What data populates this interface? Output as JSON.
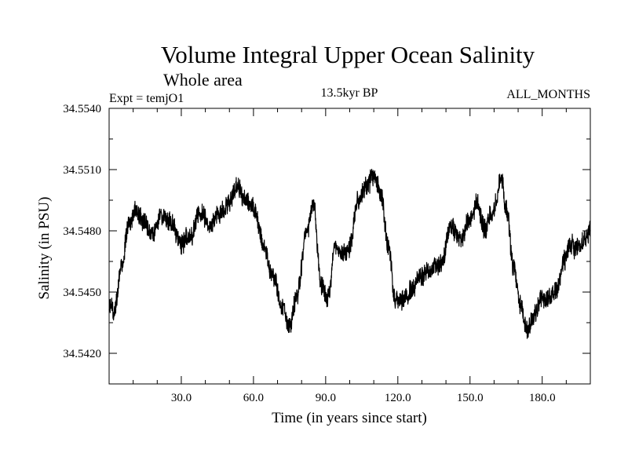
{
  "chart_data": {
    "type": "line",
    "title": "Volume Integral Upper Ocean Salinity",
    "subtitle": "Whole area",
    "experiment_label": "Expt = temjO1",
    "period_label": "13.5kyr BP",
    "months_label": "ALL_MONTHS",
    "xlabel": "Time (in years since start)",
    "ylabel": "Salinity (in PSU)",
    "xlim": [
      0,
      200
    ],
    "ylim": [
      34.5405,
      34.554
    ],
    "x_ticks": [
      30.0,
      60.0,
      90.0,
      120.0,
      150.0,
      180.0
    ],
    "x_tick_labels": [
      "30.0",
      "60.0",
      "90.0",
      "120.0",
      "150.0",
      "180.0"
    ],
    "y_ticks": [
      34.542,
      34.545,
      34.548,
      34.551,
      34.554
    ],
    "y_tick_labels": [
      "34.5420",
      "34.5450",
      "34.5480",
      "34.5510",
      "34.5540"
    ],
    "grid": false,
    "line_color": "#000000",
    "series": [
      {
        "name": "Salinity",
        "trend_x": [
          0,
          2,
          5,
          8,
          11,
          14,
          18,
          22,
          26,
          30,
          34,
          38,
          42,
          46,
          50,
          53,
          56,
          60,
          64,
          68,
          72,
          75,
          78,
          82,
          85,
          88,
          91,
          94,
          97,
          100,
          103,
          107,
          110,
          113,
          116,
          119,
          122,
          126,
          130,
          134,
          138,
          142,
          146,
          150,
          153,
          156,
          160,
          163,
          165,
          168,
          171,
          174,
          177,
          180,
          183,
          186,
          189,
          192,
          195,
          198,
          200
        ],
        "trend_y": [
          34.5445,
          34.5441,
          34.5462,
          34.5482,
          34.549,
          34.5485,
          34.5478,
          34.5488,
          34.5483,
          34.5474,
          34.5478,
          34.5489,
          34.5483,
          34.5488,
          34.5494,
          34.5502,
          34.5496,
          34.5492,
          34.5474,
          34.5458,
          34.5443,
          34.5433,
          34.5448,
          34.5479,
          34.5494,
          34.5454,
          34.5447,
          34.5472,
          34.5468,
          34.5472,
          34.5494,
          34.5501,
          34.5508,
          34.5498,
          34.5472,
          34.5446,
          34.5446,
          34.5452,
          34.5458,
          34.5462,
          34.5464,
          34.5482,
          34.5475,
          34.5486,
          34.5493,
          34.5481,
          34.5491,
          34.5506,
          34.5492,
          34.5462,
          34.5444,
          34.5432,
          34.5439,
          34.5447,
          34.5447,
          34.5452,
          34.5465,
          34.5473,
          34.5472,
          34.5476,
          34.5481
        ],
        "noise_amplitude_psu": 0.00055,
        "samples_per_year": 12
      }
    ]
  }
}
